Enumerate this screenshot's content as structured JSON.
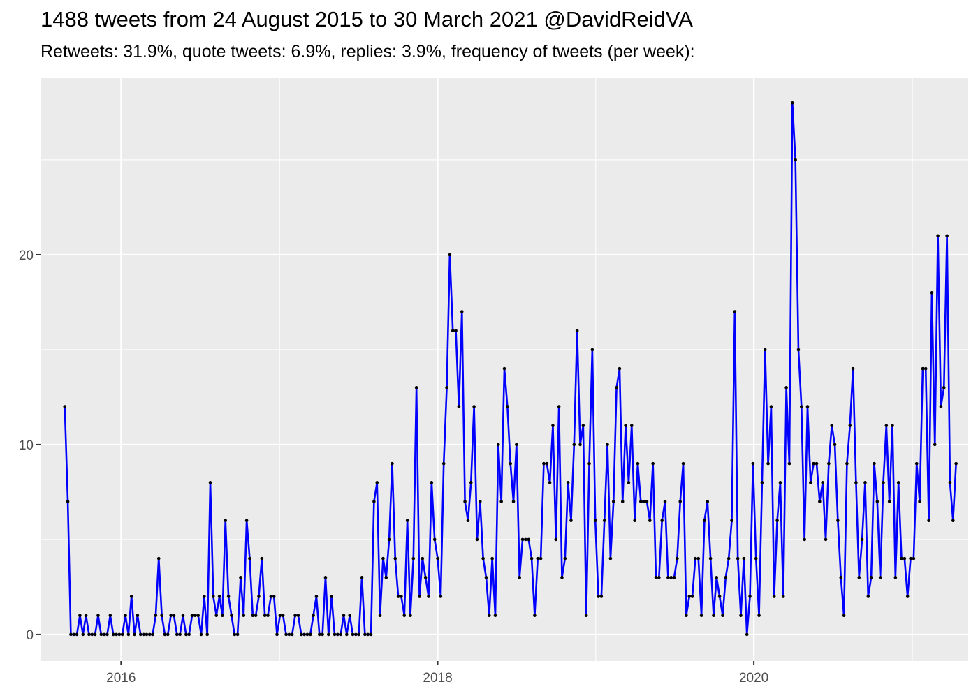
{
  "chart_data": {
    "type": "line",
    "title": "1488 tweets from 24 August 2015 to 30 March 2021 @DavidReidVA",
    "subtitle": "Retweets: 31.9%, quote tweets: 6.9%, replies: 3.9%, frequency of tweets (per week):",
    "xlabel": "",
    "ylabel": "",
    "x_ticks": [
      2016,
      2018,
      2020
    ],
    "y_ticks": [
      0,
      10,
      20
    ],
    "xlim": [
      "2015-06-29",
      "2021-05-10"
    ],
    "ylim": [
      -1.4,
      29.3
    ],
    "grid": true,
    "legend": "none",
    "colors": {
      "line": "#0000ff",
      "point": "#000000",
      "panel": "#ebebeb",
      "grid": "#ffffff"
    },
    "series": [
      {
        "week_start": "2015-08-24",
        "interval_days": 7,
        "values": [
          12,
          7,
          0,
          0,
          0,
          1,
          0,
          1,
          0,
          0,
          0,
          1,
          0,
          0,
          0,
          1,
          0,
          0,
          0,
          0,
          1,
          0,
          2,
          0,
          1,
          0,
          0,
          0,
          0,
          0,
          1,
          4,
          1,
          0,
          0,
          1,
          1,
          0,
          0,
          1,
          0,
          0,
          1,
          1,
          1,
          0,
          2,
          0,
          8,
          2,
          1,
          2,
          1,
          6,
          2,
          1,
          0,
          0,
          3,
          1,
          6,
          4,
          1,
          1,
          2,
          4,
          1,
          1,
          2,
          2,
          0,
          1,
          1,
          0,
          0,
          0,
          1,
          1,
          0,
          0,
          0,
          0,
          1,
          2,
          0,
          0,
          3,
          0,
          2,
          0,
          0,
          0,
          1,
          0,
          1,
          0,
          0,
          0,
          3,
          0,
          0,
          0,
          7,
          8,
          1,
          4,
          3,
          5,
          9,
          4,
          2,
          2,
          1,
          6,
          1,
          4,
          13,
          2,
          4,
          3,
          2,
          8,
          5,
          4,
          2,
          9,
          13,
          20,
          16,
          16,
          12,
          17,
          7,
          6,
          8,
          12,
          5,
          7,
          4,
          3,
          1,
          4,
          1,
          10,
          7,
          14,
          12,
          9,
          7,
          10,
          3,
          5,
          5,
          5,
          4,
          1,
          4,
          4,
          9,
          9,
          8,
          11,
          5,
          12,
          3,
          4,
          8,
          6,
          10,
          16,
          10,
          11,
          1,
          9,
          15,
          6,
          2,
          2,
          6,
          10,
          4,
          7,
          13,
          14,
          7,
          11,
          8,
          11,
          6,
          9,
          7,
          7,
          7,
          6,
          9,
          3,
          3,
          6,
          7,
          3,
          3,
          3,
          4,
          7,
          9,
          1,
          2,
          2,
          4,
          4,
          1,
          6,
          7,
          4,
          1,
          3,
          2,
          1,
          3,
          4,
          6,
          17,
          4,
          1,
          4,
          0,
          2,
          9,
          4,
          1,
          8,
          15,
          9,
          12,
          2,
          6,
          8,
          2,
          13,
          9,
          28,
          25,
          15,
          12,
          5,
          12,
          8,
          9,
          9,
          7,
          8,
          5,
          9,
          11,
          10,
          6,
          3,
          1,
          9,
          11,
          14,
          8,
          3,
          5,
          8,
          2,
          3,
          9,
          7,
          3,
          8,
          11,
          7,
          11,
          3,
          8,
          4,
          4,
          2,
          4,
          4,
          9,
          7,
          14,
          14,
          6,
          18,
          10,
          21,
          12,
          13,
          21,
          8,
          6,
          9
        ]
      }
    ]
  }
}
